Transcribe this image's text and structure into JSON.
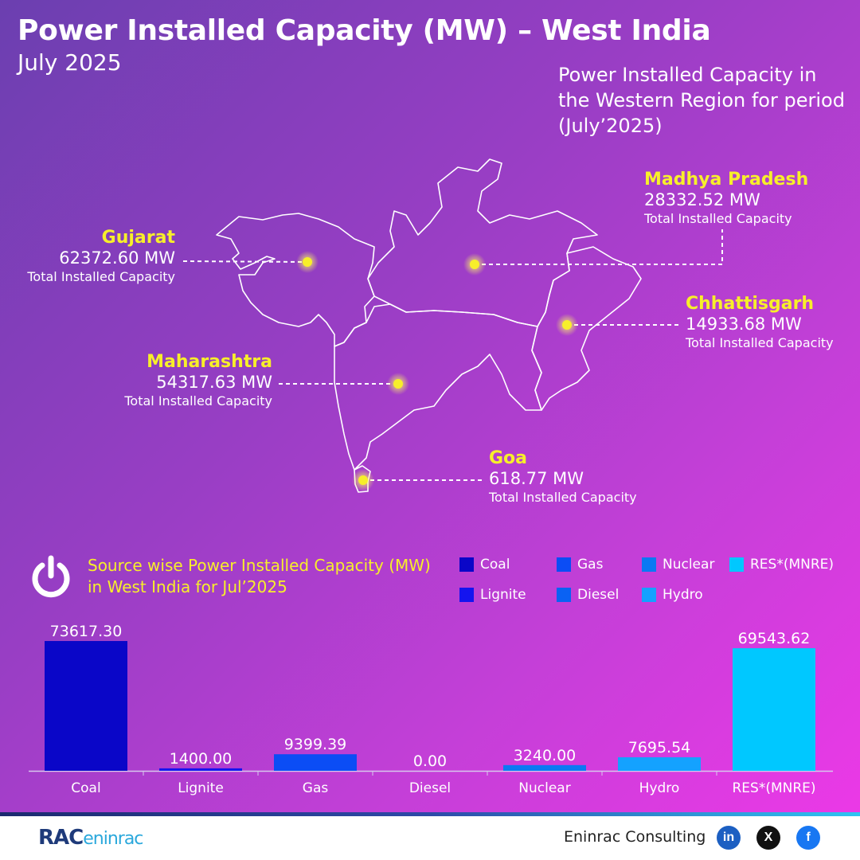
{
  "header": {
    "title": "Power Installed Capacity (MW) – West India",
    "subtitle": "July 2025",
    "map_caption": "Power Installed Capacity in the Western Region for period (July’2025)"
  },
  "states": [
    {
      "name": "Gujarat",
      "value": "62372.60 MW",
      "sub": "Total Installed Capacity"
    },
    {
      "name": "Madhya Pradesh",
      "value": "28332.52 MW",
      "sub": "Total Installed Capacity"
    },
    {
      "name": "Chhattisgarh",
      "value": "14933.68 MW",
      "sub": "Total Installed Capacity"
    },
    {
      "name": "Maharashtra",
      "value": "54317.63 MW",
      "sub": "Total Installed Capacity"
    },
    {
      "name": "Goa",
      "value": "618.77 MW",
      "sub": "Total Installed Capacity"
    }
  ],
  "source_section": {
    "heading_line1": "Source wise Power Installed Capacity (MW)",
    "heading_line2": "in West India for Jul’2025"
  },
  "legend": [
    {
      "label": "Coal",
      "color": "#0a06c8"
    },
    {
      "label": "Gas",
      "color": "#0b4df5"
    },
    {
      "label": "Nuclear",
      "color": "#0a79f3"
    },
    {
      "label": "RES*(MNRE)",
      "color": "#00c8ff"
    },
    {
      "label": "Lignite",
      "color": "#1414ef"
    },
    {
      "label": "Diesel",
      "color": "#0a62f3"
    },
    {
      "label": "Hydro",
      "color": "#14a2ff"
    }
  ],
  "chart_data": {
    "type": "bar",
    "categories": [
      "Coal",
      "Lignite",
      "Gas",
      "Diesel",
      "Nuclear",
      "Hydro",
      "RES*(MNRE)"
    ],
    "values": [
      73617.3,
      1400.0,
      9399.39,
      0.0,
      3240.0,
      7695.54,
      69543.62
    ],
    "value_labels": [
      "73617.30",
      "1400.00",
      "9399.39",
      "0.00",
      "3240.00",
      "7695.54",
      "69543.62"
    ],
    "colors": [
      "#0a06c8",
      "#1414ef",
      "#0b4df5",
      "#0a62f3",
      "#0a79f3",
      "#14a2ff",
      "#00c8ff"
    ],
    "title": "",
    "xlabel": "",
    "ylabel": "",
    "ylim": [
      0,
      73617.3
    ],
    "grid": false
  },
  "footer": {
    "logo_main": "RAC",
    "logo_rest": "eninrac",
    "company": "Eninrac Consulting",
    "social": [
      {
        "name": "linkedin",
        "glyph": "in",
        "color": "#1c5fc2"
      },
      {
        "name": "x",
        "glyph": "X",
        "color": "#111111"
      },
      {
        "name": "facebook",
        "glyph": "f",
        "color": "#1877f2"
      }
    ]
  }
}
